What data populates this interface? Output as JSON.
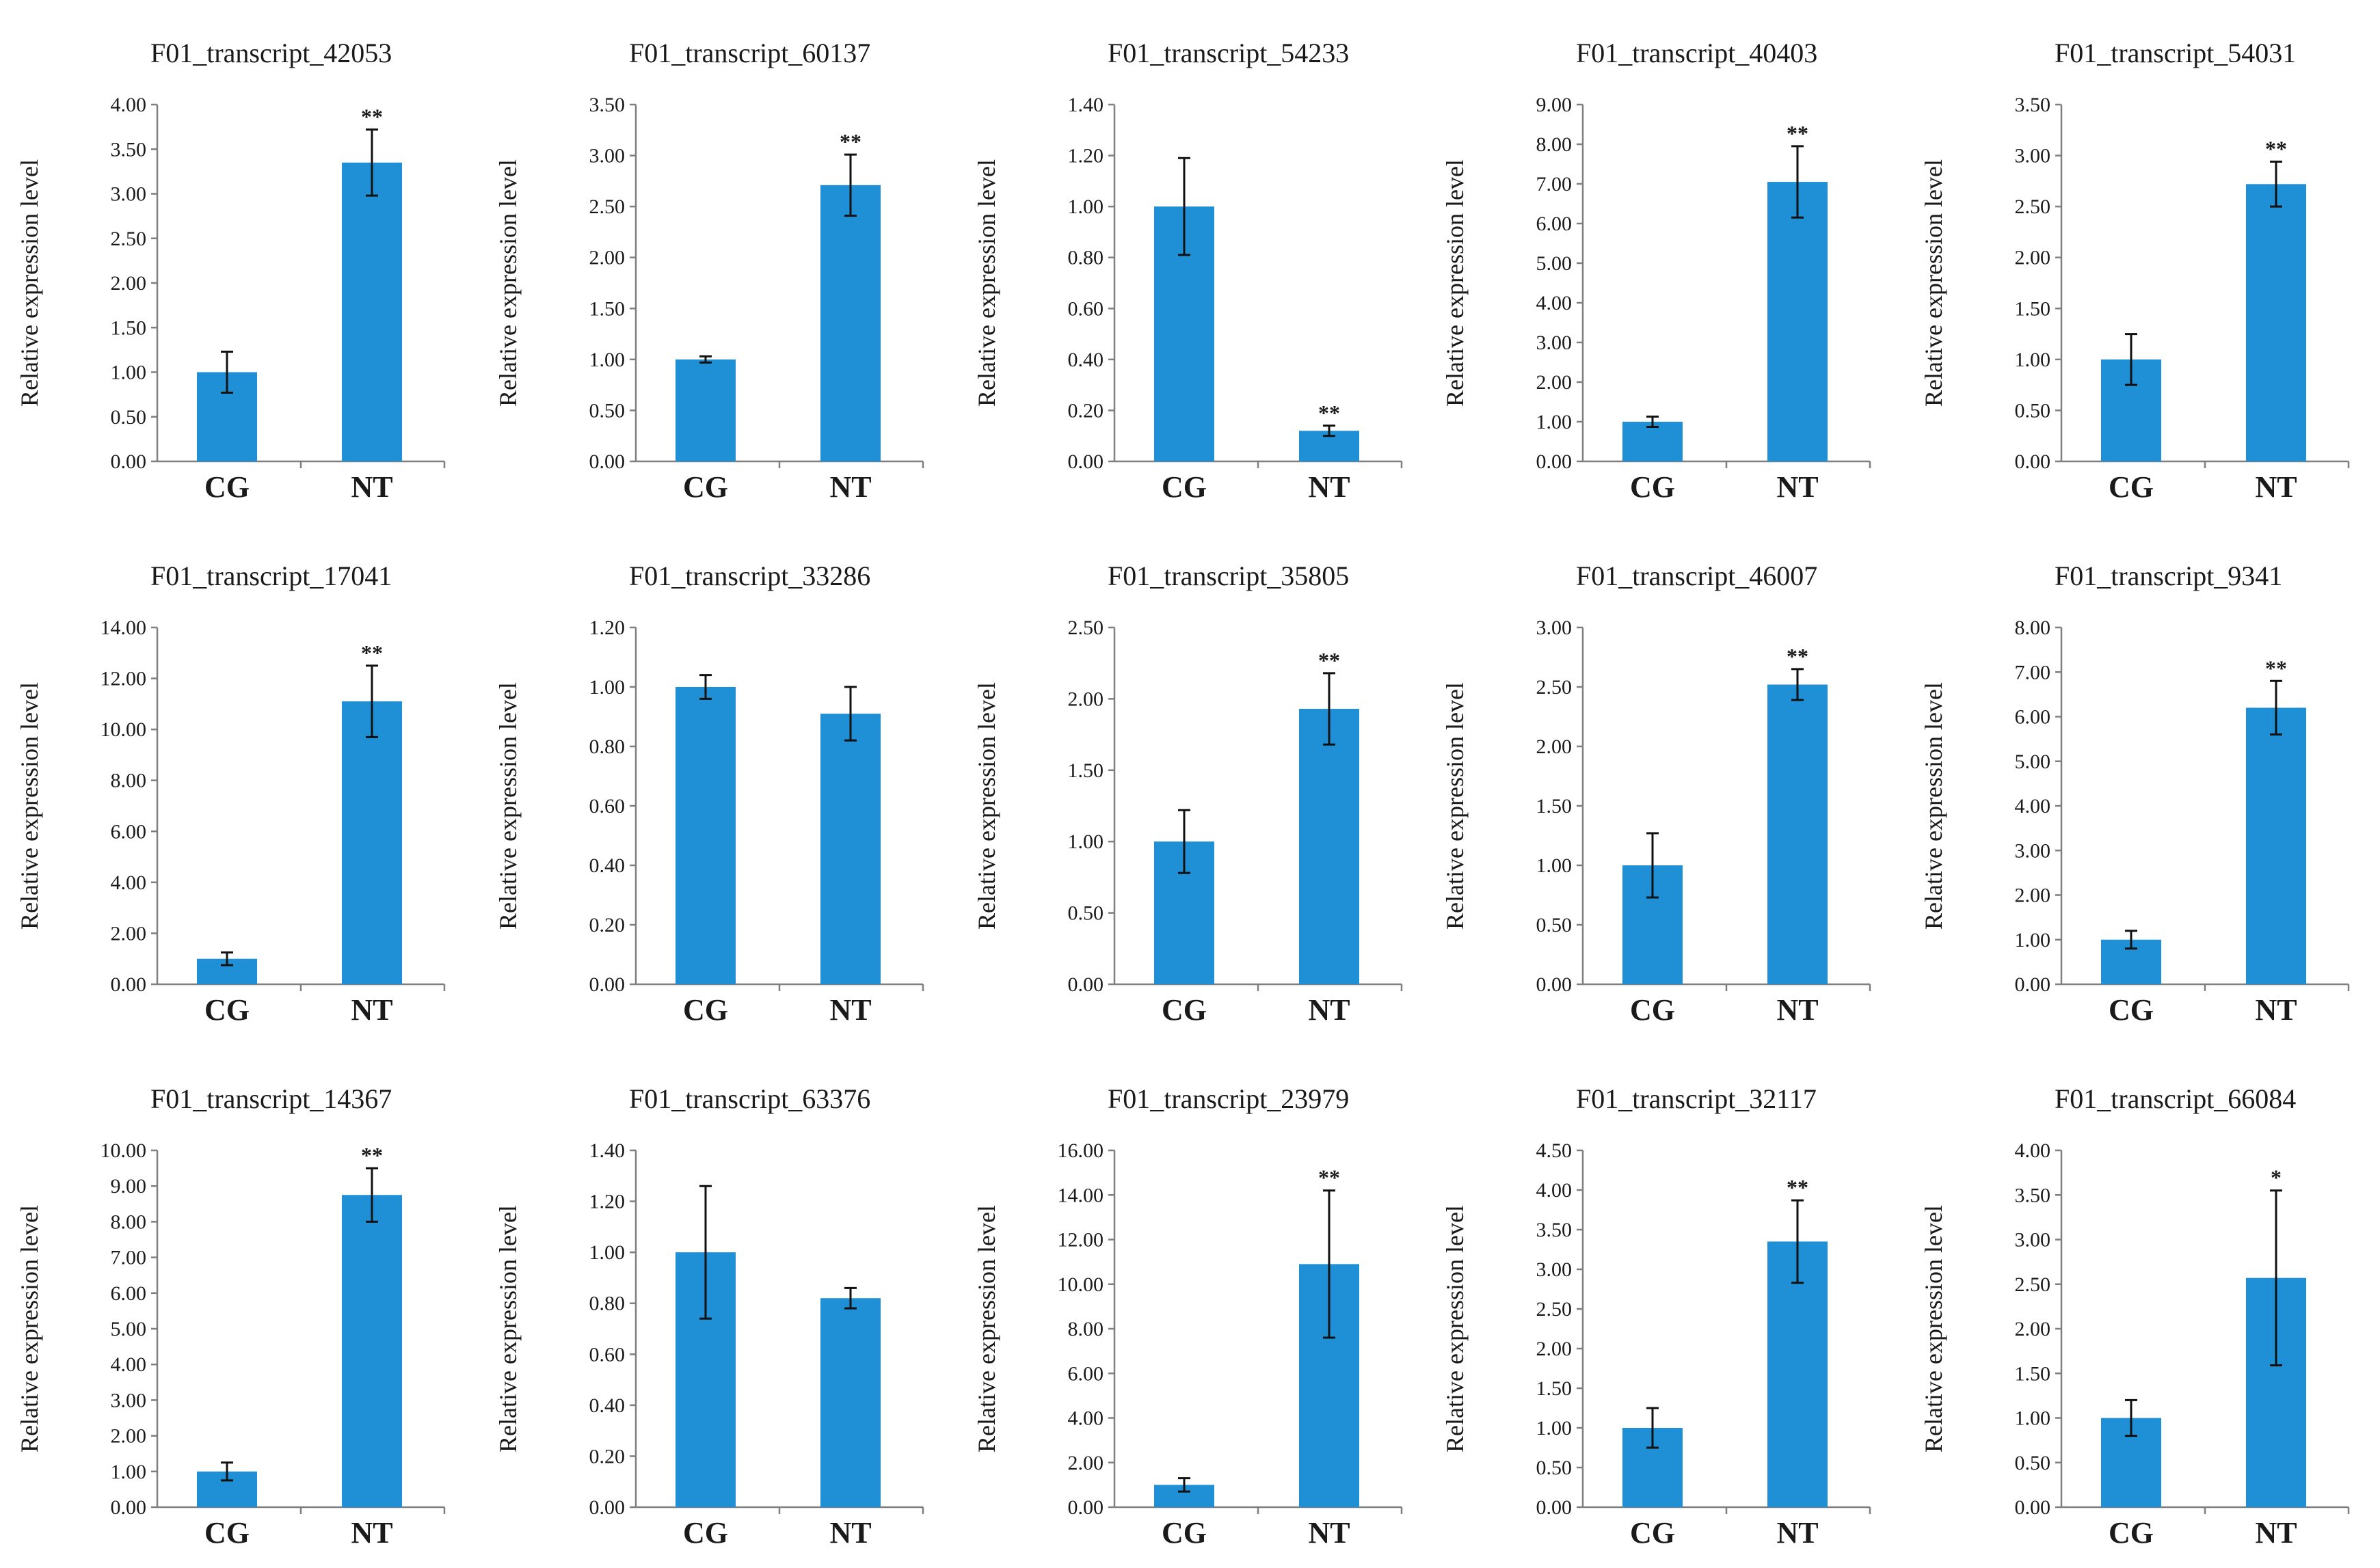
{
  "style": {
    "bar_color": "#1f8fd6",
    "axis_color": "#7f7f7f",
    "background": "#ffffff"
  },
  "chart_data": [
    {
      "type": "bar",
      "title": "F01_transcript_42053",
      "ylabel": "Relative expression level",
      "categories": [
        "CG",
        "NT"
      ],
      "values": [
        1.0,
        3.35
      ],
      "errors": [
        0.23,
        0.37
      ],
      "significance": [
        "",
        "**"
      ],
      "ylim": [
        0,
        4
      ],
      "ytick_step": 0.5,
      "ytick_labels": [
        "0.00",
        "0.50",
        "1.00",
        "1.50",
        "2.00",
        "2.50",
        "3.00",
        "3.50",
        "4.00"
      ]
    },
    {
      "type": "bar",
      "title": "F01_transcript_60137",
      "ylabel": "Relative expression level",
      "categories": [
        "CG",
        "NT"
      ],
      "values": [
        1.0,
        2.71
      ],
      "errors": [
        0.03,
        0.3
      ],
      "significance": [
        "",
        "**"
      ],
      "ylim": [
        0,
        3.5
      ],
      "ytick_step": 0.5,
      "ytick_labels": [
        "0.00",
        "0.50",
        "1.00",
        "1.50",
        "2.00",
        "2.50",
        "3.00",
        "3.50"
      ]
    },
    {
      "type": "bar",
      "title": "F01_transcript_54233",
      "ylabel": "Relative expression level",
      "categories": [
        "CG",
        "NT"
      ],
      "values": [
        1.0,
        0.12
      ],
      "errors": [
        0.19,
        0.02
      ],
      "significance": [
        "",
        "**"
      ],
      "ylim": [
        0,
        1.4
      ],
      "ytick_step": 0.2,
      "ytick_labels": [
        "0.00",
        "0.20",
        "0.40",
        "0.60",
        "0.80",
        "1.00",
        "1.20",
        "1.40"
      ]
    },
    {
      "type": "bar",
      "title": "F01_transcript_40403",
      "ylabel": "Relative expression level",
      "categories": [
        "CG",
        "NT"
      ],
      "values": [
        1.0,
        7.05
      ],
      "errors": [
        0.13,
        0.9
      ],
      "significance": [
        "",
        "**"
      ],
      "ylim": [
        0,
        9
      ],
      "ytick_step": 1,
      "ytick_labels": [
        "0.00",
        "1.00",
        "2.00",
        "3.00",
        "4.00",
        "5.00",
        "6.00",
        "7.00",
        "8.00",
        "9.00"
      ]
    },
    {
      "type": "bar",
      "title": "F01_transcript_54031",
      "ylabel": "Relative expression level",
      "categories": [
        "CG",
        "NT"
      ],
      "values": [
        1.0,
        2.72
      ],
      "errors": [
        0.25,
        0.22
      ],
      "significance": [
        "",
        "**"
      ],
      "ylim": [
        0,
        3.5
      ],
      "ytick_step": 0.5,
      "ytick_labels": [
        "0.00",
        "0.50",
        "1.00",
        "1.50",
        "2.00",
        "2.50",
        "3.00",
        "3.50"
      ]
    },
    {
      "type": "bar",
      "title": "F01_transcript_17041",
      "ylabel": "Relative expression level",
      "categories": [
        "CG",
        "NT"
      ],
      "values": [
        1.0,
        11.1
      ],
      "errors": [
        0.25,
        1.4
      ],
      "significance": [
        "",
        "**"
      ],
      "ylim": [
        0,
        14
      ],
      "ytick_step": 2,
      "ytick_labels": [
        "0.00",
        "2.00",
        "4.00",
        "6.00",
        "8.00",
        "10.00",
        "12.00",
        "14.00"
      ]
    },
    {
      "type": "bar",
      "title": "F01_transcript_33286",
      "ylabel": "Relative expression level",
      "categories": [
        "CG",
        "NT"
      ],
      "values": [
        1.0,
        0.91
      ],
      "errors": [
        0.04,
        0.09
      ],
      "significance": [
        "",
        ""
      ],
      "ylim": [
        0,
        1.2
      ],
      "ytick_step": 0.2,
      "ytick_labels": [
        "0.00",
        "0.20",
        "0.40",
        "0.60",
        "0.80",
        "1.00",
        "1.20"
      ]
    },
    {
      "type": "bar",
      "title": "F01_transcript_35805",
      "ylabel": "Relative expression level",
      "categories": [
        "CG",
        "NT"
      ],
      "values": [
        1.0,
        1.93
      ],
      "errors": [
        0.22,
        0.25
      ],
      "significance": [
        "",
        "**"
      ],
      "ylim": [
        0,
        2.5
      ],
      "ytick_step": 0.5,
      "ytick_labels": [
        "0.00",
        "0.50",
        "1.00",
        "1.50",
        "2.00",
        "2.50"
      ]
    },
    {
      "type": "bar",
      "title": "F01_transcript_46007",
      "ylabel": "Relative expression level",
      "categories": [
        "CG",
        "NT"
      ],
      "values": [
        1.0,
        2.52
      ],
      "errors": [
        0.27,
        0.13
      ],
      "significance": [
        "",
        "**"
      ],
      "ylim": [
        0,
        3
      ],
      "ytick_step": 0.5,
      "ytick_labels": [
        "0.00",
        "0.50",
        "1.00",
        "1.50",
        "2.00",
        "2.50",
        "3.00"
      ]
    },
    {
      "type": "bar",
      "title": "F01_transcript_9341",
      "ylabel": "Relative expression level",
      "categories": [
        "CG",
        "NT"
      ],
      "values": [
        1.0,
        6.2
      ],
      "errors": [
        0.2,
        0.6
      ],
      "significance": [
        "",
        "**"
      ],
      "ylim": [
        0,
        8
      ],
      "ytick_step": 1,
      "ytick_labels": [
        "0.00",
        "1.00",
        "2.00",
        "3.00",
        "4.00",
        "5.00",
        "6.00",
        "7.00",
        "8.00"
      ]
    },
    {
      "type": "bar",
      "title": "F01_transcript_14367",
      "ylabel": "Relative expression level",
      "categories": [
        "CG",
        "NT"
      ],
      "values": [
        1.0,
        8.75
      ],
      "errors": [
        0.25,
        0.75
      ],
      "significance": [
        "",
        "**"
      ],
      "ylim": [
        0,
        10
      ],
      "ytick_step": 1,
      "ytick_labels": [
        "0.00",
        "1.00",
        "2.00",
        "3.00",
        "4.00",
        "5.00",
        "6.00",
        "7.00",
        "8.00",
        "9.00",
        "10.00"
      ]
    },
    {
      "type": "bar",
      "title": "F01_transcript_63376",
      "ylabel": "Relative expression level",
      "categories": [
        "CG",
        "NT"
      ],
      "values": [
        1.0,
        0.82
      ],
      "errors": [
        0.26,
        0.04
      ],
      "significance": [
        "",
        ""
      ],
      "ylim": [
        0,
        1.4
      ],
      "ytick_step": 0.2,
      "ytick_labels": [
        "0.00",
        "0.20",
        "0.40",
        "0.60",
        "0.80",
        "1.00",
        "1.20",
        "1.40"
      ]
    },
    {
      "type": "bar",
      "title": "F01_transcript_23979",
      "ylabel": "Relative expression level",
      "categories": [
        "CG",
        "NT"
      ],
      "values": [
        1.0,
        10.9
      ],
      "errors": [
        0.3,
        3.3
      ],
      "significance": [
        "",
        "**"
      ],
      "ylim": [
        0,
        16
      ],
      "ytick_step": 2,
      "ytick_labels": [
        "0.00",
        "2.00",
        "4.00",
        "6.00",
        "8.00",
        "10.00",
        "12.00",
        "14.00",
        "16.00"
      ]
    },
    {
      "type": "bar",
      "title": "F01_transcript_32117",
      "ylabel": "Relative expression level",
      "categories": [
        "CG",
        "NT"
      ],
      "values": [
        1.0,
        3.35
      ],
      "errors": [
        0.25,
        0.52
      ],
      "significance": [
        "",
        "**"
      ],
      "ylim": [
        0,
        4.5
      ],
      "ytick_step": 0.5,
      "ytick_labels": [
        "0.00",
        "0.50",
        "1.00",
        "1.50",
        "2.00",
        "2.50",
        "3.00",
        "3.50",
        "4.00",
        "4.50"
      ]
    },
    {
      "type": "bar",
      "title": "F01_transcript_66084",
      "ylabel": "Relative expression level",
      "categories": [
        "CG",
        "NT"
      ],
      "values": [
        1.0,
        2.57
      ],
      "errors": [
        0.2,
        0.98
      ],
      "significance": [
        "",
        "*"
      ],
      "ylim": [
        0,
        4
      ],
      "ytick_step": 0.5,
      "ytick_labels": [
        "0.00",
        "0.50",
        "1.00",
        "1.50",
        "2.00",
        "2.50",
        "3.00",
        "3.50",
        "4.00"
      ]
    }
  ]
}
